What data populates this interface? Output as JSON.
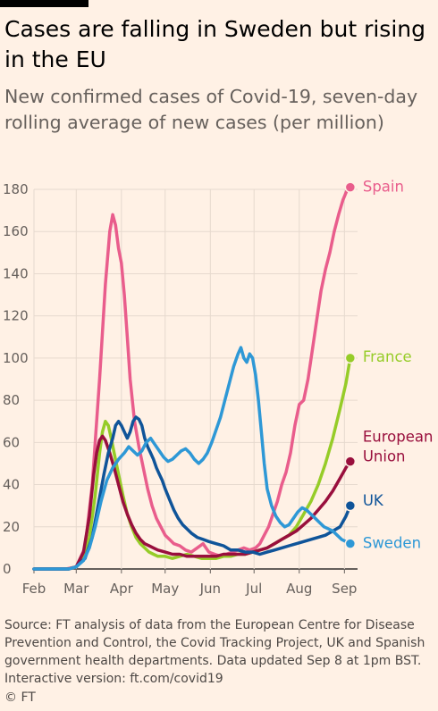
{
  "title": "Cases are falling in Sweden but rising in the EU",
  "subtitle": "New confirmed cases of Covid-19, seven-day rolling average of new cases (per million)",
  "source": "Source: FT analysis of data from the European Centre for Disease Prevention and Control, the Covid Tracking Project, UK and Spanish government health departments. Data updated Sep 8 at 1pm BST. Interactive version: ft.com/covid19",
  "brand": "© FT",
  "chart_data": {
    "type": "line",
    "title": "Cases are falling in Sweden but rising in the EU",
    "subtitle": "New confirmed cases of Covid-19, seven-day rolling average of new cases (per million)",
    "xlabel": "",
    "ylabel": "",
    "ylim": [
      0,
      180
    ],
    "yticks": [
      0,
      20,
      40,
      60,
      80,
      100,
      120,
      140,
      160,
      180
    ],
    "xlim": [
      0,
      222
    ],
    "xticks": [
      {
        "label": "Feb",
        "x": 0
      },
      {
        "label": "Mar",
        "x": 29
      },
      {
        "label": "Apr",
        "x": 60
      },
      {
        "label": "May",
        "x": 90
      },
      {
        "label": "Jun",
        "x": 121
      },
      {
        "label": "Jul",
        "x": 151
      },
      {
        "label": "Aug",
        "x": 182
      },
      {
        "label": "Sep",
        "x": 213
      }
    ],
    "x_unit": "days since Feb 1",
    "grid": true,
    "legend": "direct labels at line ends",
    "series": [
      {
        "name": "Spain",
        "color": "#e95d8c",
        "label_lines": [
          "Spain"
        ],
        "points": [
          [
            0,
            0
          ],
          [
            22,
            0
          ],
          [
            29,
            1
          ],
          [
            35,
            10
          ],
          [
            40,
            40
          ],
          [
            45,
            90
          ],
          [
            49,
            135
          ],
          [
            52,
            160
          ],
          [
            54,
            168
          ],
          [
            56,
            163
          ],
          [
            58,
            152
          ],
          [
            60,
            145
          ],
          [
            62,
            130
          ],
          [
            64,
            110
          ],
          [
            66,
            90
          ],
          [
            69,
            70
          ],
          [
            72,
            58
          ],
          [
            75,
            48
          ],
          [
            78,
            38
          ],
          [
            81,
            30
          ],
          [
            84,
            24
          ],
          [
            87,
            20
          ],
          [
            90,
            16
          ],
          [
            93,
            14
          ],
          [
            96,
            12
          ],
          [
            100,
            11
          ],
          [
            104,
            9
          ],
          [
            108,
            8
          ],
          [
            112,
            10
          ],
          [
            116,
            12
          ],
          [
            120,
            8
          ],
          [
            124,
            7
          ],
          [
            128,
            6
          ],
          [
            132,
            7
          ],
          [
            136,
            8
          ],
          [
            140,
            9
          ],
          [
            144,
            10
          ],
          [
            148,
            9
          ],
          [
            152,
            10
          ],
          [
            155,
            12
          ],
          [
            158,
            16
          ],
          [
            161,
            20
          ],
          [
            164,
            26
          ],
          [
            167,
            32
          ],
          [
            170,
            40
          ],
          [
            173,
            46
          ],
          [
            176,
            55
          ],
          [
            179,
            68
          ],
          [
            182,
            78
          ],
          [
            185,
            80
          ],
          [
            188,
            90
          ],
          [
            191,
            104
          ],
          [
            194,
            118
          ],
          [
            197,
            132
          ],
          [
            200,
            142
          ],
          [
            203,
            150
          ],
          [
            206,
            160
          ],
          [
            209,
            168
          ],
          [
            212,
            175
          ],
          [
            215,
            180
          ],
          [
            217,
            181
          ]
        ]
      },
      {
        "name": "France",
        "color": "#96cc28",
        "label_lines": [
          "France"
        ],
        "points": [
          [
            0,
            0
          ],
          [
            24,
            0
          ],
          [
            29,
            1
          ],
          [
            34,
            5
          ],
          [
            38,
            15
          ],
          [
            42,
            35
          ],
          [
            45,
            55
          ],
          [
            47,
            65
          ],
          [
            49,
            70
          ],
          [
            51,
            68
          ],
          [
            53,
            62
          ],
          [
            55,
            55
          ],
          [
            58,
            45
          ],
          [
            61,
            35
          ],
          [
            64,
            26
          ],
          [
            67,
            20
          ],
          [
            70,
            15
          ],
          [
            73,
            12
          ],
          [
            76,
            10
          ],
          [
            79,
            8
          ],
          [
            82,
            7
          ],
          [
            85,
            6
          ],
          [
            90,
            6
          ],
          [
            95,
            5
          ],
          [
            100,
            6
          ],
          [
            105,
            7
          ],
          [
            110,
            6
          ],
          [
            115,
            5
          ],
          [
            120,
            5
          ],
          [
            125,
            5
          ],
          [
            130,
            6
          ],
          [
            135,
            6
          ],
          [
            140,
            7
          ],
          [
            145,
            7
          ],
          [
            150,
            8
          ],
          [
            155,
            9
          ],
          [
            160,
            10
          ],
          [
            165,
            12
          ],
          [
            170,
            14
          ],
          [
            175,
            16
          ],
          [
            180,
            20
          ],
          [
            185,
            26
          ],
          [
            190,
            32
          ],
          [
            195,
            40
          ],
          [
            200,
            50
          ],
          [
            205,
            62
          ],
          [
            210,
            76
          ],
          [
            214,
            88
          ],
          [
            217,
            100
          ]
        ]
      },
      {
        "name": "European Union",
        "color": "#990f3d",
        "label_lines": [
          "European",
          "Union"
        ],
        "points": [
          [
            0,
            0
          ],
          [
            24,
            0
          ],
          [
            29,
            1
          ],
          [
            34,
            8
          ],
          [
            38,
            25
          ],
          [
            41,
            45
          ],
          [
            43,
            55
          ],
          [
            45,
            61
          ],
          [
            47,
            63
          ],
          [
            49,
            61
          ],
          [
            52,
            55
          ],
          [
            55,
            48
          ],
          [
            58,
            40
          ],
          [
            61,
            32
          ],
          [
            64,
            26
          ],
          [
            67,
            21
          ],
          [
            70,
            17
          ],
          [
            73,
            14
          ],
          [
            76,
            12
          ],
          [
            79,
            11
          ],
          [
            82,
            10
          ],
          [
            85,
            9
          ],
          [
            90,
            8
          ],
          [
            95,
            7
          ],
          [
            100,
            7
          ],
          [
            105,
            6
          ],
          [
            110,
            6
          ],
          [
            115,
            6
          ],
          [
            120,
            6
          ],
          [
            125,
            6
          ],
          [
            130,
            7
          ],
          [
            135,
            7
          ],
          [
            140,
            7
          ],
          [
            145,
            7
          ],
          [
            150,
            8
          ],
          [
            155,
            9
          ],
          [
            160,
            10
          ],
          [
            165,
            12
          ],
          [
            170,
            14
          ],
          [
            175,
            16
          ],
          [
            180,
            18
          ],
          [
            185,
            21
          ],
          [
            190,
            24
          ],
          [
            195,
            28
          ],
          [
            200,
            32
          ],
          [
            205,
            37
          ],
          [
            210,
            43
          ],
          [
            214,
            48
          ],
          [
            217,
            51
          ]
        ]
      },
      {
        "name": "UK",
        "color": "#0f5499",
        "label_lines": [
          "UK"
        ],
        "points": [
          [
            0,
            0
          ],
          [
            24,
            0
          ],
          [
            29,
            1
          ],
          [
            35,
            5
          ],
          [
            40,
            15
          ],
          [
            44,
            30
          ],
          [
            48,
            45
          ],
          [
            51,
            55
          ],
          [
            54,
            62
          ],
          [
            56,
            68
          ],
          [
            58,
            70
          ],
          [
            60,
            68
          ],
          [
            62,
            65
          ],
          [
            64,
            62
          ],
          [
            66,
            65
          ],
          [
            68,
            70
          ],
          [
            70,
            72
          ],
          [
            72,
            71
          ],
          [
            74,
            68
          ],
          [
            76,
            62
          ],
          [
            78,
            58
          ],
          [
            80,
            55
          ],
          [
            82,
            52
          ],
          [
            84,
            48
          ],
          [
            86,
            45
          ],
          [
            88,
            42
          ],
          [
            90,
            38
          ],
          [
            93,
            33
          ],
          [
            96,
            28
          ],
          [
            99,
            24
          ],
          [
            102,
            21
          ],
          [
            105,
            19
          ],
          [
            108,
            17
          ],
          [
            112,
            15
          ],
          [
            116,
            14
          ],
          [
            120,
            13
          ],
          [
            125,
            12
          ],
          [
            130,
            11
          ],
          [
            135,
            9
          ],
          [
            140,
            9
          ],
          [
            145,
            8
          ],
          [
            150,
            8
          ],
          [
            155,
            7
          ],
          [
            160,
            8
          ],
          [
            165,
            9
          ],
          [
            170,
            10
          ],
          [
            175,
            11
          ],
          [
            180,
            12
          ],
          [
            185,
            13
          ],
          [
            190,
            14
          ],
          [
            195,
            15
          ],
          [
            200,
            16
          ],
          [
            205,
            18
          ],
          [
            210,
            20
          ],
          [
            214,
            25
          ],
          [
            217,
            30
          ]
        ]
      },
      {
        "name": "Sweden",
        "color": "#2e98d6",
        "label_lines": [
          "Sweden"
        ],
        "points": [
          [
            0,
            0
          ],
          [
            24,
            0
          ],
          [
            29,
            1
          ],
          [
            34,
            4
          ],
          [
            38,
            10
          ],
          [
            42,
            20
          ],
          [
            46,
            32
          ],
          [
            50,
            42
          ],
          [
            54,
            48
          ],
          [
            58,
            52
          ],
          [
            62,
            55
          ],
          [
            65,
            58
          ],
          [
            68,
            56
          ],
          [
            71,
            54
          ],
          [
            74,
            56
          ],
          [
            77,
            60
          ],
          [
            80,
            62
          ],
          [
            83,
            59
          ],
          [
            86,
            56
          ],
          [
            89,
            53
          ],
          [
            92,
            51
          ],
          [
            95,
            52
          ],
          [
            98,
            54
          ],
          [
            101,
            56
          ],
          [
            104,
            57
          ],
          [
            107,
            55
          ],
          [
            110,
            52
          ],
          [
            113,
            50
          ],
          [
            116,
            52
          ],
          [
            119,
            55
          ],
          [
            122,
            60
          ],
          [
            125,
            66
          ],
          [
            128,
            72
          ],
          [
            131,
            80
          ],
          [
            134,
            88
          ],
          [
            137,
            96
          ],
          [
            140,
            102
          ],
          [
            142,
            105
          ],
          [
            144,
            100
          ],
          [
            146,
            98
          ],
          [
            148,
            102
          ],
          [
            150,
            100
          ],
          [
            152,
            92
          ],
          [
            154,
            80
          ],
          [
            156,
            65
          ],
          [
            158,
            50
          ],
          [
            160,
            38
          ],
          [
            163,
            30
          ],
          [
            166,
            25
          ],
          [
            169,
            22
          ],
          [
            172,
            20
          ],
          [
            175,
            21
          ],
          [
            178,
            24
          ],
          [
            181,
            27
          ],
          [
            184,
            29
          ],
          [
            187,
            28
          ],
          [
            190,
            26
          ],
          [
            193,
            24
          ],
          [
            196,
            22
          ],
          [
            199,
            20
          ],
          [
            202,
            19
          ],
          [
            205,
            18
          ],
          [
            208,
            16
          ],
          [
            211,
            14
          ],
          [
            214,
            13
          ],
          [
            217,
            12
          ]
        ]
      }
    ]
  }
}
